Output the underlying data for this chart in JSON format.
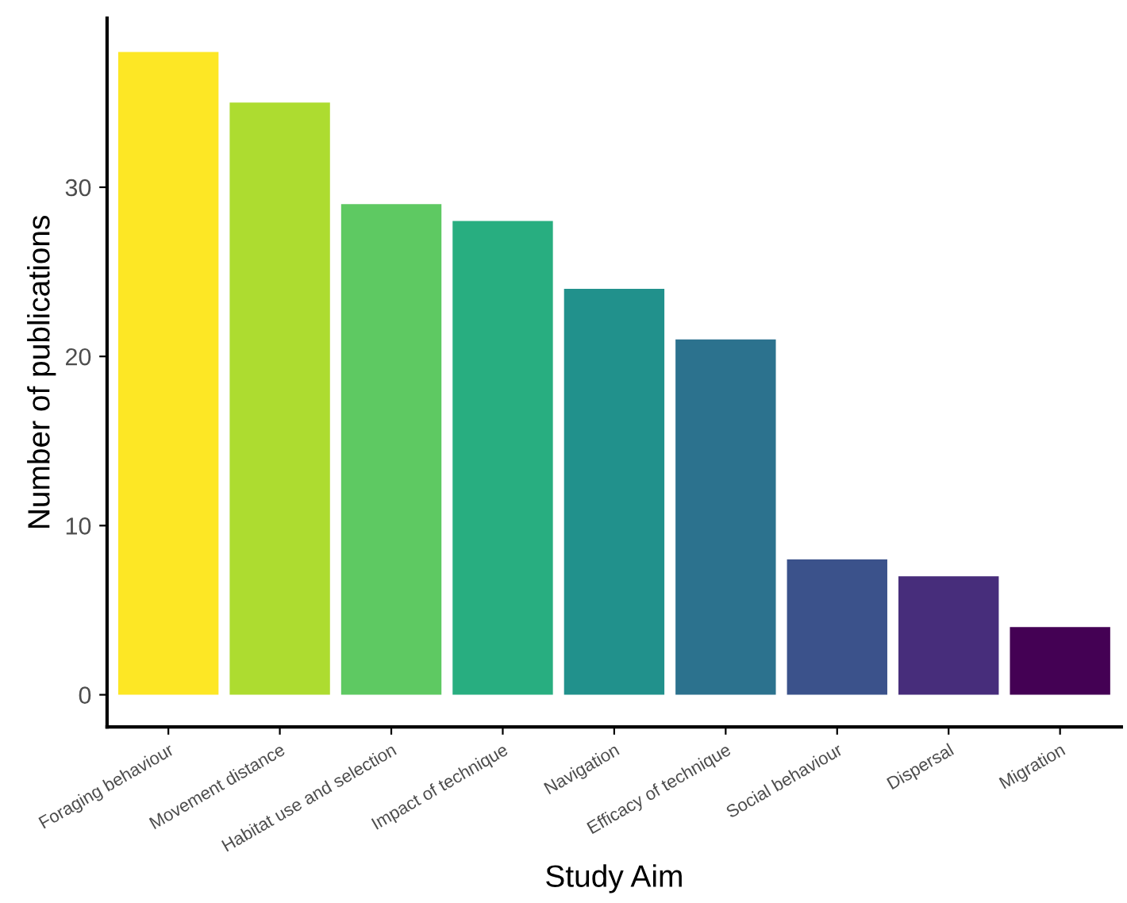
{
  "chart_data": {
    "type": "bar",
    "xlabel": "Study Aim",
    "ylabel": "Number of publications",
    "categories": [
      "Foraging behaviour",
      "Movement distance",
      "Habitat use and selection",
      "Impact of technique",
      "Navigation",
      "Efficacy of technique",
      "Social behaviour",
      "Dispersal",
      "Migration"
    ],
    "values": [
      38,
      35,
      29,
      28,
      24,
      21,
      8,
      7,
      4
    ],
    "colors": [
      "#fde725",
      "#addc30",
      "#5ec962",
      "#28ae80",
      "#21918c",
      "#2c728e",
      "#3b528b",
      "#472d7b",
      "#440154"
    ],
    "ylim": [
      -1.9,
      40
    ],
    "yticks": [
      0,
      10,
      20,
      30
    ],
    "grid": false,
    "legend": false
  }
}
